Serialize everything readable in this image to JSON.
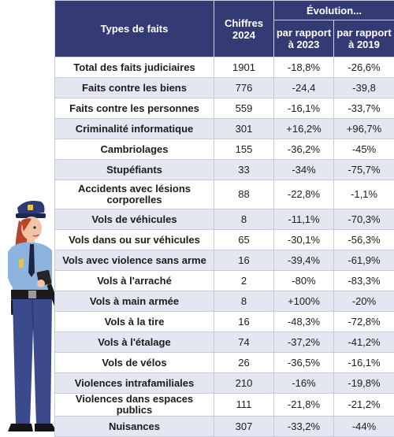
{
  "header": {
    "types": "Types de faits",
    "chiffres": "Chiffres 2024",
    "evolution": "Évolution...",
    "vs2023": "par rapport à 2023",
    "vs2019": "par rapport à 2019"
  },
  "rows": [
    {
      "label": "Total des faits judiciaires",
      "chiffres": "1901",
      "vs2023": "-18,8%",
      "vs2019": "-26,6%"
    },
    {
      "label": "Faits contre les biens",
      "chiffres": "776",
      "vs2023": "-24,4",
      "vs2019": "-39,8"
    },
    {
      "label": "Faits contre les personnes",
      "chiffres": "559",
      "vs2023": "-16,1%",
      "vs2019": "-33,7%"
    },
    {
      "label": "Criminalité informatique",
      "chiffres": "301",
      "vs2023": "+16,2%",
      "vs2019": "+96,7%"
    },
    {
      "label": "Cambriolages",
      "chiffres": "155",
      "vs2023": "-36,2%",
      "vs2019": "-45%"
    },
    {
      "label": "Stupéfiants",
      "chiffres": "33",
      "vs2023": "-34%",
      "vs2019": "-75,7%"
    },
    {
      "label": "Accidents avec lésions corporelles",
      "chiffres": "88",
      "vs2023": "-22,8%",
      "vs2019": "-1,1%"
    },
    {
      "label": "Vols de véhicules",
      "chiffres": "8",
      "vs2023": "-11,1%",
      "vs2019": "-70,3%"
    },
    {
      "label": "Vols dans ou sur véhicules",
      "chiffres": "65",
      "vs2023": "-30,1%",
      "vs2019": "-56,3%"
    },
    {
      "label": "Vols avec violence sans arme",
      "chiffres": "16",
      "vs2023": "-39,4%",
      "vs2019": "-61,9%"
    },
    {
      "label": "Vols à l'arraché",
      "chiffres": "2",
      "vs2023": "-80%",
      "vs2019": "-83,3%"
    },
    {
      "label": "Vols à main armée",
      "chiffres": "8",
      "vs2023": "+100%",
      "vs2019": "-20%"
    },
    {
      "label": "Vols à la tire",
      "chiffres": "16",
      "vs2023": "-48,3%",
      "vs2019": "-72,8%"
    },
    {
      "label": "Vols à l'étalage",
      "chiffres": "74",
      "vs2023": "-37,2%",
      "vs2019": "-41,2%"
    },
    {
      "label": "Vols de vélos",
      "chiffres": "26",
      "vs2023": "-36,5%",
      "vs2019": "-16,1%"
    },
    {
      "label": "Violences intrafamiliales",
      "chiffres": "210",
      "vs2023": "-16%",
      "vs2019": "-19,8%"
    },
    {
      "label": "Violences dans espaces publics",
      "chiffres": "111",
      "vs2023": "-21,8%",
      "vs2019": "-21,2%"
    },
    {
      "label": "Nuisances",
      "chiffres": "307",
      "vs2023": "-33,2%",
      "vs2019": "-44%"
    }
  ],
  "colors": {
    "header_bg": "#343b74",
    "stripe": "#e4e6f2",
    "uniform": "#3a4a8c"
  },
  "illustration": {
    "icon": "police-officer-icon"
  }
}
